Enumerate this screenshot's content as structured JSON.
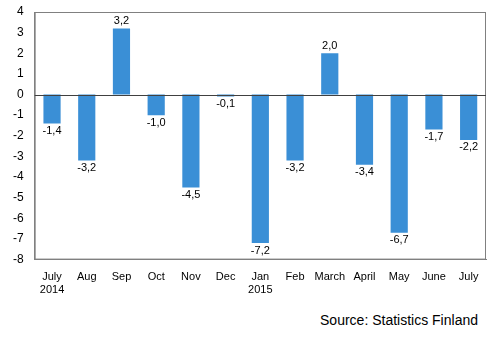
{
  "chart_data": {
    "type": "bar",
    "categories": [
      [
        "July",
        "2014"
      ],
      [
        "Aug"
      ],
      [
        "Sep"
      ],
      [
        "Oct"
      ],
      [
        "Nov"
      ],
      [
        "Dec"
      ],
      [
        "Jan",
        "2015"
      ],
      [
        "Feb"
      ],
      [
        "March"
      ],
      [
        "April"
      ],
      [
        "May"
      ],
      [
        "June"
      ],
      [
        "July"
      ]
    ],
    "values": [
      -1.4,
      -3.2,
      3.2,
      -1.0,
      -4.5,
      -0.1,
      -7.2,
      -3.2,
      2.0,
      -3.4,
      -6.7,
      -1.7,
      -2.2
    ],
    "value_labels": [
      "-1,4",
      "-3,2",
      "3,2",
      "-1,0",
      "-4,5",
      "-0,1",
      "-7,2",
      "-3,2",
      "2,0",
      "-3,4",
      "-6,7",
      "-1,7",
      "-2,2"
    ],
    "data_labels": true,
    "color": "#3a8fd6",
    "ylim": [
      -8,
      4
    ],
    "yticks": [
      -8,
      -7,
      -6,
      -5,
      -4,
      -3,
      -2,
      -1,
      0,
      1,
      2,
      3,
      4
    ],
    "grid": false,
    "annotations": [
      "Source: Statistics Finland"
    ]
  }
}
